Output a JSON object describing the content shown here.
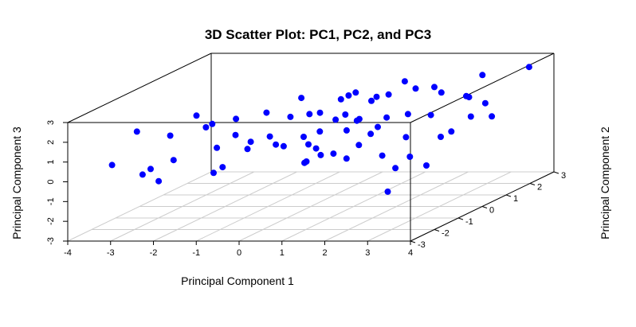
{
  "chart_data": {
    "type": "scatter",
    "title": "3D Scatter Plot: PC1, PC2, and PC3",
    "xlabel": "Principal Component 1",
    "ylabel": "Principal Component 2",
    "zlabel": "Principal Component 3",
    "xlim": [
      -4,
      4
    ],
    "ylim": [
      -3,
      3
    ],
    "zlim": [
      -3,
      3
    ],
    "x_ticks": [
      "-4",
      "-3",
      "-2",
      "-1",
      "0",
      "1",
      "2",
      "3",
      "4"
    ],
    "y_ticks": [
      "-3",
      "-2",
      "-1",
      "0",
      "1",
      "2",
      "3"
    ],
    "z_ticks": [
      "-3",
      "-2",
      "-1",
      "0",
      "1",
      "2",
      "3"
    ],
    "grid": "floor",
    "point_color": "#0000ff",
    "points": [
      [
        -3.3,
        -2.4,
        0.5
      ],
      [
        -2.5,
        -1.4,
        1.4
      ],
      [
        -2.0,
        -1.2,
        2.3
      ],
      [
        -1.3,
        -0.8,
        1.9
      ],
      [
        -1.2,
        -0.5,
        0.2
      ],
      [
        -3.0,
        -1.9,
        1.9
      ],
      [
        -2.7,
        -2.2,
        -0.1
      ],
      [
        -2.2,
        -1.8,
        0.4
      ],
      [
        -1.6,
        -1.2,
        -0.6
      ],
      [
        -0.9,
        -0.9,
        0.8
      ],
      [
        -1.8,
        -0.9,
        1.7
      ],
      [
        -1.2,
        -1.0,
        1.2
      ],
      [
        -0.7,
        -0.6,
        2.1
      ],
      [
        -1.3,
        -1.6,
        0.9
      ],
      [
        -2.4,
        -2.4,
        0.3
      ],
      [
        -0.7,
        0.4,
        1.3
      ],
      [
        -0.5,
        0.5,
        2.2
      ],
      [
        -0.2,
        0.3,
        1.5
      ],
      [
        0.0,
        -0.3,
        0.7
      ],
      [
        0.3,
        0.5,
        1.1
      ],
      [
        0.6,
        0.8,
        2.3
      ],
      [
        0.8,
        1.1,
        1.7
      ],
      [
        -0.3,
        -0.6,
        0.4
      ],
      [
        0.0,
        -0.1,
        0.2
      ],
      [
        0.5,
        0.6,
        0.5
      ],
      [
        0.6,
        -0.7,
        1.2
      ],
      [
        1.2,
        0.6,
        2.2
      ],
      [
        1.3,
        -0.3,
        1.6
      ],
      [
        0.9,
        -1.2,
        0.3
      ],
      [
        1.5,
        0.3,
        -0.6
      ],
      [
        2.0,
        0.8,
        2.5
      ],
      [
        2.1,
        0.3,
        1.5
      ],
      [
        2.3,
        0.9,
        1.1
      ],
      [
        1.4,
        -0.5,
        0.4
      ],
      [
        2.5,
        -0.5,
        0.8
      ],
      [
        2.8,
        1.6,
        1.6
      ],
      [
        2.6,
        0.8,
        2.3
      ],
      [
        3.0,
        0.5,
        0.5
      ],
      [
        2.7,
        -1.3,
        -0.3
      ],
      [
        1.9,
        -0.9,
        1.2
      ],
      [
        -0.1,
        0.4,
        -0.3
      ],
      [
        0.4,
        -0.9,
        -0.2
      ],
      [
        1.0,
        -0.3,
        -0.4
      ],
      [
        2.2,
        0.2,
        -0.6
      ],
      [
        2.8,
        -1.8,
        -1.2
      ],
      [
        3.0,
        1.8,
        2.6
      ],
      [
        3.4,
        0.6,
        1.2
      ],
      [
        3.5,
        1.3,
        0.8
      ],
      [
        3.7,
        2.5,
        2.6
      ],
      [
        3.2,
        -0.3,
        0.7
      ],
      [
        0.1,
        1.4,
        1.8
      ],
      [
        0.7,
        2.0,
        1.5
      ],
      [
        1.6,
        2.3,
        1.7
      ],
      [
        2.4,
        2.2,
        1.3
      ],
      [
        -0.2,
        1.8,
        0.6
      ],
      [
        -1.5,
        -1.7,
        2.0
      ],
      [
        -0.9,
        -0.1,
        0.6
      ],
      [
        0.2,
        0.9,
        1.9
      ],
      [
        1.1,
        1.2,
        0.8
      ],
      [
        1.8,
        -1.3,
        2.1
      ],
      [
        -2.1,
        -2.6,
        -0.2
      ],
      [
        -1.0,
        -1.9,
        0.1
      ],
      [
        0.3,
        -2.0,
        1.3
      ],
      [
        0.8,
        -1.7,
        0.2
      ],
      [
        1.7,
        -2.1,
        0.9
      ],
      [
        2.4,
        -1.5,
        1.9
      ],
      [
        3.2,
        -0.9,
        -0.4
      ],
      [
        -0.4,
        1.1,
        1.1
      ],
      [
        1.3,
        1.6,
        2.4
      ],
      [
        2.9,
        2.1,
        1.0
      ]
    ]
  }
}
